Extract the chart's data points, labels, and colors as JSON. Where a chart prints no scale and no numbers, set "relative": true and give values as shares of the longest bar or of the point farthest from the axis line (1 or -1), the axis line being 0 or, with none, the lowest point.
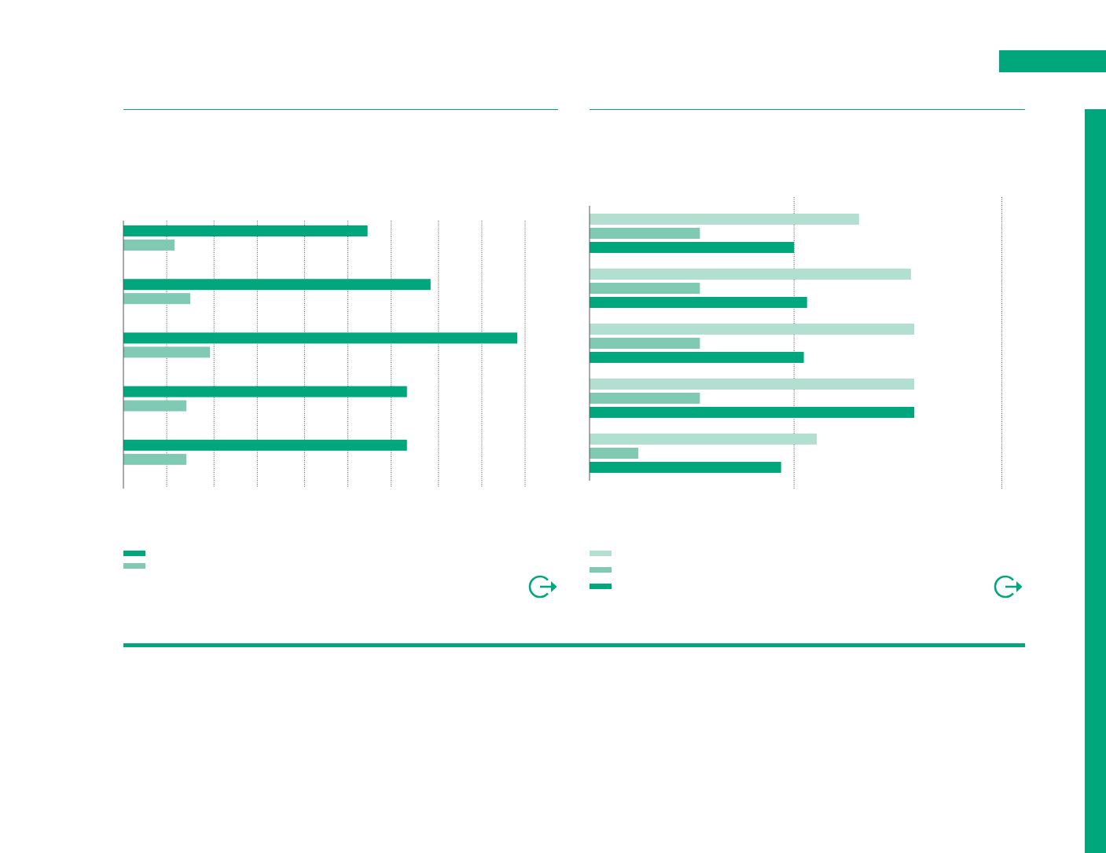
{
  "chart_data": [
    {
      "type": "bar",
      "orientation": "horizontal",
      "relative": true,
      "categories": [
        null,
        null,
        null,
        null,
        null
      ],
      "series": [
        {
          "color": "#00a77c",
          "values": [
            0.62,
            0.78,
            1,
            0.72,
            0.72
          ]
        },
        {
          "color": "#80cab4",
          "values": [
            0.13,
            0.17,
            0.22,
            0.16,
            0.16
          ]
        }
      ],
      "ref_lines": [
        {
          "axis": "x",
          "value": 0.11,
          "color": "#555555",
          "line_style": "dotted"
        },
        {
          "axis": "x",
          "value": 0.23,
          "color": "#555555",
          "line_style": "dotted"
        },
        {
          "axis": "x",
          "value": 0.34,
          "color": "#555555",
          "line_style": "dotted"
        },
        {
          "axis": "x",
          "value": 0.46,
          "color": "#555555",
          "line_style": "dotted"
        },
        {
          "axis": "x",
          "value": 0.57,
          "color": "#555555",
          "line_style": "dotted"
        },
        {
          "axis": "x",
          "value": 0.68,
          "color": "#555555",
          "line_style": "dotted"
        },
        {
          "axis": "x",
          "value": 0.8,
          "color": "#555555",
          "line_style": "dotted"
        },
        {
          "axis": "x",
          "value": 0.91,
          "color": "#555555",
          "line_style": "dotted"
        },
        {
          "axis": "x",
          "value": 1.02,
          "color": "#555555",
          "line_style": "dotted"
        }
      ]
    },
    {
      "type": "bar",
      "orientation": "horizontal",
      "relative": true,
      "categories": [
        null,
        null,
        null,
        null,
        null
      ],
      "series": [
        {
          "color": "#b3dfd1",
          "values": [
            0.83,
            0.99,
            1,
            1,
            0.7
          ]
        },
        {
          "color": "#80cab4",
          "values": [
            0.34,
            0.34,
            0.34,
            0.34,
            0.15
          ]
        },
        {
          "color": "#00a77c",
          "values": [
            0.63,
            0.67,
            0.66,
            1,
            0.59
          ]
        }
      ],
      "ref_lines": [
        {
          "axis": "x",
          "value": 0.63,
          "color": "#555555",
          "line_style": "dotted"
        },
        {
          "axis": "x",
          "value": 1.27,
          "color": "#555555",
          "line_style": "dotted"
        }
      ]
    }
  ]
}
